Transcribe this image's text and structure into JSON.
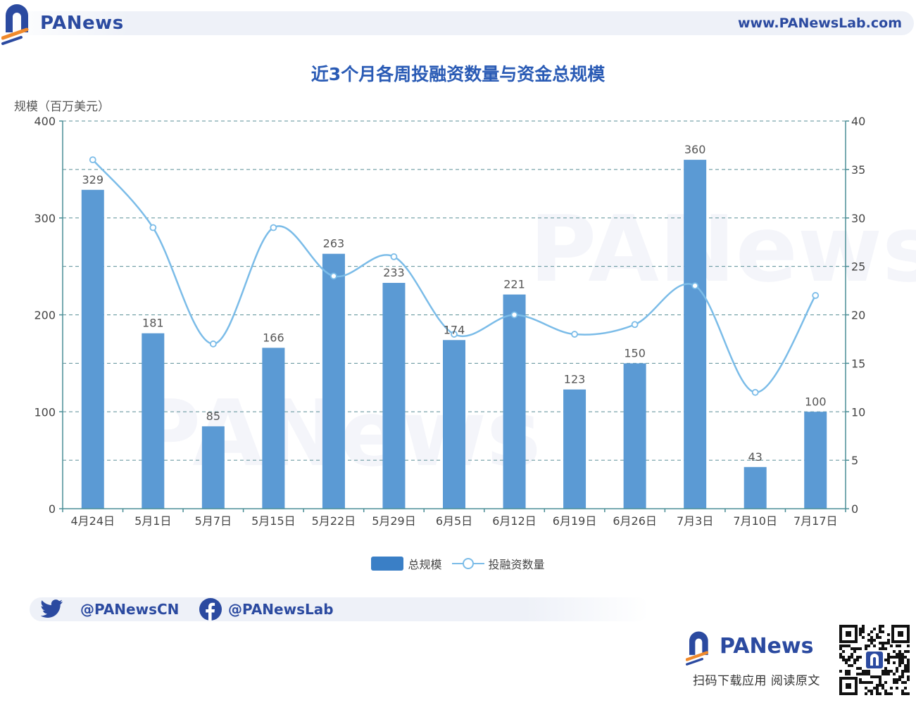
{
  "header": {
    "brand": "PANews",
    "url": "www.PANewsLab.com"
  },
  "chart_data": {
    "type": "bar",
    "title": "近3个月各周投融资数量与资金总规模",
    "ylabel_left": "规模（百万美元）",
    "ylabel_right": "",
    "categories": [
      "4月24日",
      "5月1日",
      "5月7日",
      "5月15日",
      "5月22日",
      "5月29日",
      "6月5日",
      "6月12日",
      "6月19日",
      "6月26日",
      "7月3日",
      "7月10日",
      "7月17日"
    ],
    "series": [
      {
        "name": "总规模",
        "type": "bar",
        "axis": "left",
        "color": "#3a7fc6",
        "values": [
          329,
          181,
          85,
          166,
          263,
          233,
          174,
          221,
          123,
          150,
          360,
          43,
          100
        ]
      },
      {
        "name": "投融资数量",
        "type": "line",
        "axis": "right",
        "smooth": true,
        "color": "#7bbce8",
        "values": [
          36,
          29,
          17,
          29,
          24,
          26,
          18,
          20,
          18,
          19,
          23,
          12,
          22
        ]
      }
    ],
    "ylim_left": [
      0,
      400
    ],
    "yticks_left": [
      0,
      100,
      200,
      300,
      400
    ],
    "ylim_right": [
      0,
      40
    ],
    "yticks_right": [
      0,
      5,
      10,
      15,
      20,
      25,
      30,
      35,
      40
    ],
    "grid": true,
    "legend_position": "bottom-center"
  },
  "social": {
    "twitter": "@PANewsCN",
    "facebook": "@PANewsLab"
  },
  "footer": {
    "brand": "PANews",
    "caption": "扫码下载应用  阅读原文"
  },
  "icons": {
    "logo": "panews-logo-icon",
    "twitter": "twitter-bird-icon",
    "facebook": "facebook-icon",
    "qr": "qr-code-icon"
  }
}
